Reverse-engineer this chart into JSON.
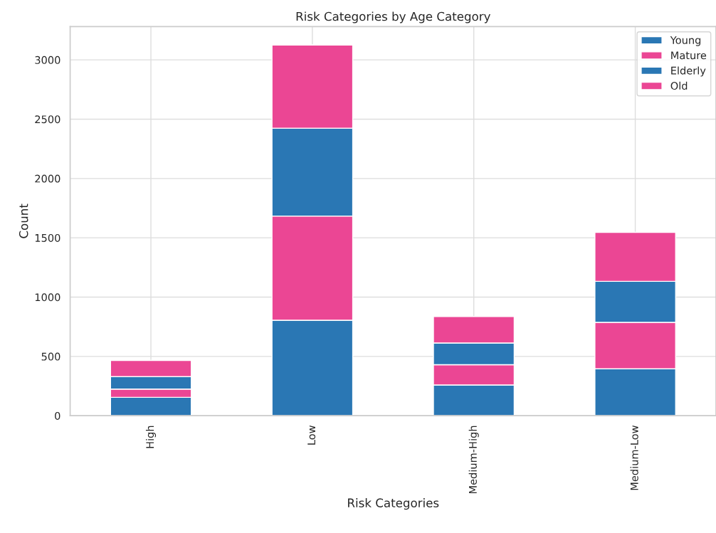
{
  "chart_data": {
    "type": "bar",
    "title": "Risk Categories by Age Category",
    "xlabel": "Risk Categories",
    "ylabel": "Count",
    "categories": [
      "High",
      "Low",
      "Medium-High",
      "Medium-Low"
    ],
    "stacked": true,
    "series": [
      {
        "name": "Young",
        "color": "#2a77b4",
        "values": [
          155,
          805,
          259,
          396
        ]
      },
      {
        "name": "Mature",
        "color": "#eb4694",
        "values": [
          70,
          878,
          171,
          391
        ]
      },
      {
        "name": "Elderly",
        "color": "#2a77b4",
        "values": [
          105,
          741,
          183,
          346
        ]
      },
      {
        "name": "Old",
        "color": "#eb4694",
        "values": [
          136,
          701,
          224,
          413
        ]
      }
    ],
    "ylim": [
      0,
      3280
    ],
    "yticks": [
      0,
      500,
      1000,
      1500,
      2000,
      2500,
      3000
    ],
    "grid": true,
    "legend": "top right"
  }
}
